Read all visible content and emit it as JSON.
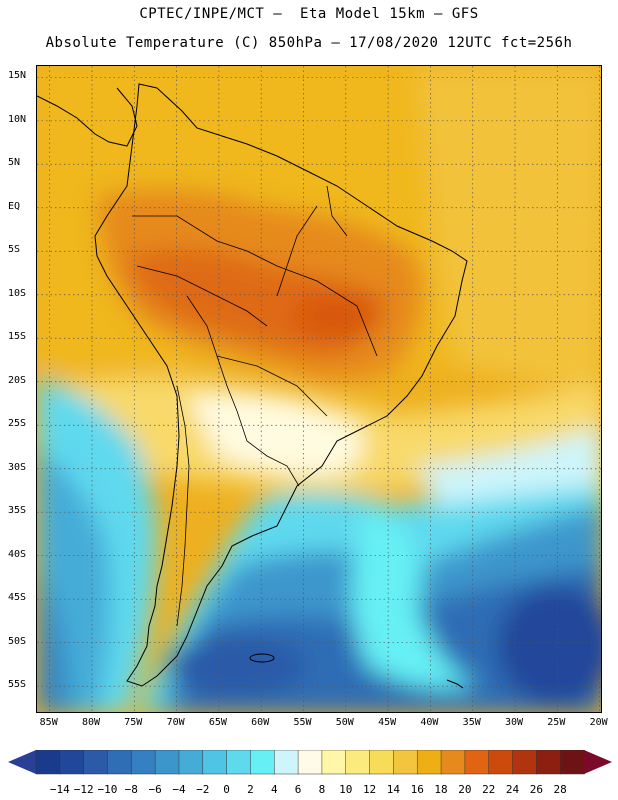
{
  "header": {
    "line1": "CPTEC/INPE/MCT –  Eta Model 15km – GFS",
    "line2": "Absolute Temperature (C) 850hPa – 17/08/2020 12UTC fct=256h"
  },
  "axes": {
    "lat_labels": [
      "15N",
      "10N",
      "5N",
      "EQ",
      "5S",
      "10S",
      "15S",
      "20S",
      "25S",
      "30S",
      "35S",
      "40S",
      "45S",
      "50S",
      "55S"
    ],
    "lon_labels": [
      "85W",
      "80W",
      "75W",
      "70W",
      "65W",
      "60W",
      "55W",
      "50W",
      "45W",
      "40W",
      "35W",
      "30W",
      "25W",
      "20W"
    ],
    "lat_values": [
      15,
      10,
      5,
      0,
      -5,
      -10,
      -15,
      -20,
      -25,
      -30,
      -35,
      -40,
      -45,
      -50,
      -55
    ],
    "lon_values": [
      -85,
      -80,
      -75,
      -70,
      -65,
      -60,
      -55,
      -50,
      -45,
      -40,
      -35,
      -30,
      -25,
      -20
    ],
    "lat_range": [
      -58.2,
      16.3
    ],
    "lon_range": [
      -86.5,
      -19.6
    ]
  },
  "colorbar": {
    "labels": [
      "-14",
      "-12",
      "-10",
      "-8",
      "-6",
      "-4",
      "-2",
      "0",
      "2",
      "4",
      "6",
      "8",
      "10",
      "12",
      "14",
      "16",
      "18",
      "20",
      "22",
      "24",
      "26",
      "28"
    ],
    "colors": [
      "#1a3a8c",
      "#21479b",
      "#2a5aa8",
      "#2f6db5",
      "#3580c0",
      "#3c96cc",
      "#45acd8",
      "#4fc4e4",
      "#5ed9ee",
      "#66f0f5",
      "#cdf5fb",
      "#fffbe6",
      "#fff6a8",
      "#fbeb7e",
      "#f8dc58",
      "#f3c53e",
      "#eeaf14",
      "#e68a1e",
      "#e06412",
      "#cc4a0b",
      "#b0340d",
      "#8d1f10",
      "#6e1313"
    ],
    "low_color": "#2a3f96",
    "high_color": "#7a0a2a"
  },
  "map": {
    "frame_color": "#000000",
    "grid_color": "#555555",
    "coast_color": "#000000"
  }
}
